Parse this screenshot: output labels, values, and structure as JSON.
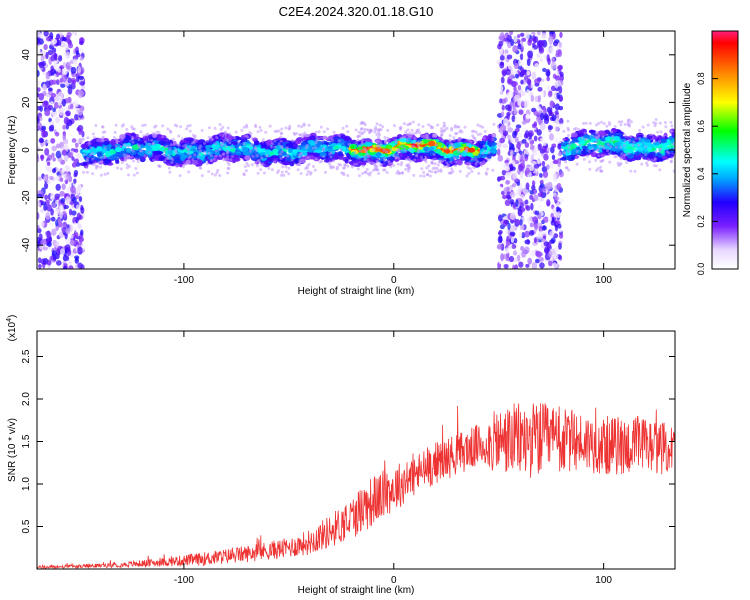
{
  "title": "C2E4.2024.320.01.18.G10",
  "colors": {
    "snr_line": "#ee3333",
    "axis": "#000000",
    "background": "#ffffff"
  },
  "chart_data": [
    {
      "type": "heatmap",
      "name": "spectrogram",
      "xlabel": "Height of straight line (km)",
      "ylabel": "Frequency (Hz)",
      "xlim": [
        -170,
        134
      ],
      "ylim": [
        -50,
        50
      ],
      "x_ticks": [
        -100,
        0,
        100
      ],
      "y_ticks": [
        -40,
        -20,
        0,
        20,
        40
      ],
      "colorbar": {
        "label": "Normalized spectral amplitude",
        "range": [
          0,
          1
        ],
        "ticks": [
          0.0,
          0.2,
          0.4,
          0.6,
          0.8
        ],
        "colormap": "rainbow"
      },
      "regions": [
        {
          "x_range": [
            -170,
            -148
          ],
          "y_range": [
            -50,
            50
          ],
          "level": 0.2,
          "kind": "noise"
        },
        {
          "x_range": [
            -148,
            48
          ],
          "center_hz": 0,
          "width_hz": 10,
          "level": 0.45,
          "kind": "band"
        },
        {
          "x_range": [
            -20,
            40
          ],
          "center_hz": 1,
          "width_hz": 4,
          "level": 0.95,
          "kind": "core"
        },
        {
          "x_range": [
            50,
            80
          ],
          "y_range": [
            -50,
            50
          ],
          "level": 0.2,
          "kind": "noise"
        },
        {
          "x_range": [
            81,
            134
          ],
          "center_hz": 2,
          "width_hz": 10,
          "level": 0.5,
          "kind": "band"
        }
      ]
    },
    {
      "type": "line",
      "name": "snr",
      "xlabel": "Height of straight line (km)",
      "ylabel": "SNR (10 * v/v)",
      "y_multiplier": "(x10",
      "y_multiplier_exp": "4",
      "y_multiplier_close": ")",
      "xlim": [
        -170,
        134
      ],
      "ylim": [
        0,
        2.8
      ],
      "x_ticks": [
        -100,
        0,
        100
      ],
      "y_ticks": [
        0.5,
        1.0,
        1.5,
        2.0,
        2.5
      ],
      "y_tick_labels": [
        "0.5",
        "1.0",
        "1.5",
        "2.0",
        "2.5"
      ],
      "series": [
        {
          "color": "#ee3333",
          "x": [
            -170,
            -150,
            -130,
            -110,
            -90,
            -70,
            -50,
            -40,
            -30,
            -20,
            -15,
            -10,
            0,
            10,
            20,
            30,
            40,
            50,
            60,
            70,
            80,
            90,
            100,
            110,
            120,
            130,
            134
          ],
          "y": [
            0.02,
            0.03,
            0.05,
            0.08,
            0.12,
            0.18,
            0.25,
            0.32,
            0.45,
            0.6,
            0.72,
            0.8,
            0.95,
            1.1,
            1.25,
            1.35,
            1.45,
            1.5,
            1.52,
            1.52,
            1.5,
            1.5,
            1.45,
            1.45,
            1.45,
            1.42,
            1.4
          ],
          "noise_amplitude": [
            0.02,
            0.02,
            0.03,
            0.05,
            0.08,
            0.1,
            0.12,
            0.15,
            0.2,
            0.25,
            0.3,
            0.3,
            0.28,
            0.25,
            0.25,
            0.25,
            0.25,
            0.4,
            0.45,
            0.45,
            0.4,
            0.35,
            0.35,
            0.35,
            0.35,
            0.3,
            0.3
          ]
        }
      ]
    }
  ]
}
